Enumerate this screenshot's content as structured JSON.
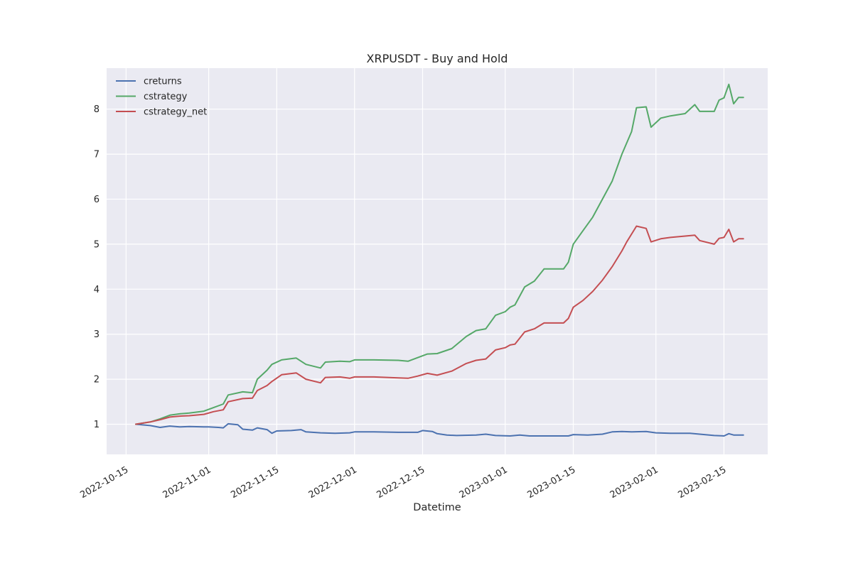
{
  "chart_data": {
    "type": "line",
    "title": "XRPUSDT - Buy and Hold",
    "xlabel": "Datetime",
    "ylabel": "",
    "x_type": "date",
    "xlim": [
      "2022-10-11",
      "2023-02-24"
    ],
    "ylim": [
      0.33,
      8.91
    ],
    "x_ticks": [
      "2022-10-15",
      "2022-11-01",
      "2022-11-15",
      "2022-12-01",
      "2022-12-15",
      "2023-01-01",
      "2023-01-15",
      "2023-02-01",
      "2023-02-15"
    ],
    "y_ticks": [
      1,
      2,
      3,
      4,
      5,
      6,
      7,
      8
    ],
    "grid": true,
    "legend_position": "top-left",
    "series": [
      {
        "name": "creturns",
        "color": "#4c72b0",
        "points": [
          [
            "2022-10-17",
            1.0
          ],
          [
            "2022-10-20",
            0.97
          ],
          [
            "2022-10-22",
            0.93
          ],
          [
            "2022-10-24",
            0.96
          ],
          [
            "2022-10-26",
            0.94
          ],
          [
            "2022-10-28",
            0.95
          ],
          [
            "2022-10-31",
            0.94
          ],
          [
            "2022-11-01",
            0.94
          ],
          [
            "2022-11-03",
            0.93
          ],
          [
            "2022-11-04",
            0.92
          ],
          [
            "2022-11-05",
            1.01
          ],
          [
            "2022-11-07",
            0.99
          ],
          [
            "2022-11-08",
            0.89
          ],
          [
            "2022-11-10",
            0.87
          ],
          [
            "2022-11-11",
            0.92
          ],
          [
            "2022-11-13",
            0.88
          ],
          [
            "2022-11-14",
            0.8
          ],
          [
            "2022-11-15",
            0.85
          ],
          [
            "2022-11-18",
            0.86
          ],
          [
            "2022-11-20",
            0.88
          ],
          [
            "2022-11-21",
            0.83
          ],
          [
            "2022-11-24",
            0.81
          ],
          [
            "2022-11-27",
            0.8
          ],
          [
            "2022-11-30",
            0.81
          ],
          [
            "2022-12-01",
            0.83
          ],
          [
            "2022-12-05",
            0.83
          ],
          [
            "2022-12-10",
            0.82
          ],
          [
            "2022-12-14",
            0.82
          ],
          [
            "2022-12-15",
            0.86
          ],
          [
            "2022-12-17",
            0.84
          ],
          [
            "2022-12-18",
            0.79
          ],
          [
            "2022-12-20",
            0.76
          ],
          [
            "2022-12-22",
            0.75
          ],
          [
            "2022-12-26",
            0.76
          ],
          [
            "2022-12-28",
            0.78
          ],
          [
            "2022-12-30",
            0.75
          ],
          [
            "2023-01-02",
            0.74
          ],
          [
            "2023-01-04",
            0.76
          ],
          [
            "2023-01-06",
            0.74
          ],
          [
            "2023-01-09",
            0.74
          ],
          [
            "2023-01-14",
            0.74
          ],
          [
            "2023-01-15",
            0.77
          ],
          [
            "2023-01-18",
            0.76
          ],
          [
            "2023-01-21",
            0.78
          ],
          [
            "2023-01-23",
            0.83
          ],
          [
            "2023-01-25",
            0.84
          ],
          [
            "2023-01-27",
            0.83
          ],
          [
            "2023-01-30",
            0.84
          ],
          [
            "2023-02-01",
            0.81
          ],
          [
            "2023-02-04",
            0.8
          ],
          [
            "2023-02-08",
            0.8
          ],
          [
            "2023-02-10",
            0.78
          ],
          [
            "2023-02-13",
            0.75
          ],
          [
            "2023-02-15",
            0.74
          ],
          [
            "2023-02-16",
            0.79
          ],
          [
            "2023-02-17",
            0.76
          ],
          [
            "2023-02-19",
            0.76
          ]
        ]
      },
      {
        "name": "cstrategy",
        "color": "#55a868",
        "points": [
          [
            "2022-10-17",
            1.0
          ],
          [
            "2022-10-20",
            1.05
          ],
          [
            "2022-10-22",
            1.12
          ],
          [
            "2022-10-24",
            1.2
          ],
          [
            "2022-10-26",
            1.23
          ],
          [
            "2022-10-28",
            1.25
          ],
          [
            "2022-10-31",
            1.29
          ],
          [
            "2022-11-02",
            1.37
          ],
          [
            "2022-11-04",
            1.45
          ],
          [
            "2022-11-05",
            1.65
          ],
          [
            "2022-11-08",
            1.72
          ],
          [
            "2022-11-10",
            1.7
          ],
          [
            "2022-11-11",
            2.0
          ],
          [
            "2022-11-13",
            2.2
          ],
          [
            "2022-11-14",
            2.33
          ],
          [
            "2022-11-16",
            2.43
          ],
          [
            "2022-11-19",
            2.47
          ],
          [
            "2022-11-21",
            2.33
          ],
          [
            "2022-11-24",
            2.25
          ],
          [
            "2022-11-25",
            2.38
          ],
          [
            "2022-11-28",
            2.4
          ],
          [
            "2022-11-30",
            2.39
          ],
          [
            "2022-12-01",
            2.43
          ],
          [
            "2022-12-05",
            2.43
          ],
          [
            "2022-12-10",
            2.42
          ],
          [
            "2022-12-12",
            2.4
          ],
          [
            "2022-12-14",
            2.48
          ],
          [
            "2022-12-16",
            2.56
          ],
          [
            "2022-12-18",
            2.57
          ],
          [
            "2022-12-21",
            2.68
          ],
          [
            "2022-12-24",
            2.95
          ],
          [
            "2022-12-26",
            3.08
          ],
          [
            "2022-12-28",
            3.12
          ],
          [
            "2022-12-30",
            3.42
          ],
          [
            "2023-01-01",
            3.5
          ],
          [
            "2023-01-02",
            3.6
          ],
          [
            "2023-01-03",
            3.65
          ],
          [
            "2023-01-05",
            4.05
          ],
          [
            "2023-01-07",
            4.18
          ],
          [
            "2023-01-09",
            4.45
          ],
          [
            "2023-01-13",
            4.45
          ],
          [
            "2023-01-14",
            4.6
          ],
          [
            "2023-01-15",
            5.0
          ],
          [
            "2023-01-17",
            5.3
          ],
          [
            "2023-01-19",
            5.6
          ],
          [
            "2023-01-21",
            6.0
          ],
          [
            "2023-01-23",
            6.4
          ],
          [
            "2023-01-25",
            7.0
          ],
          [
            "2023-01-27",
            7.5
          ],
          [
            "2023-01-28",
            8.03
          ],
          [
            "2023-01-30",
            8.05
          ],
          [
            "2023-01-31",
            7.6
          ],
          [
            "2023-02-02",
            7.8
          ],
          [
            "2023-02-04",
            7.85
          ],
          [
            "2023-02-07",
            7.9
          ],
          [
            "2023-02-09",
            8.1
          ],
          [
            "2023-02-10",
            7.95
          ],
          [
            "2023-02-13",
            7.95
          ],
          [
            "2023-02-14",
            8.2
          ],
          [
            "2023-02-15",
            8.25
          ],
          [
            "2023-02-16",
            8.55
          ],
          [
            "2023-02-17",
            8.12
          ],
          [
            "2023-02-18",
            8.26
          ],
          [
            "2023-02-19",
            8.26
          ]
        ]
      },
      {
        "name": "cstrategy_net",
        "color": "#c44e52",
        "points": [
          [
            "2022-10-17",
            1.0
          ],
          [
            "2022-10-20",
            1.05
          ],
          [
            "2022-10-22",
            1.1
          ],
          [
            "2022-10-24",
            1.16
          ],
          [
            "2022-10-26",
            1.18
          ],
          [
            "2022-10-28",
            1.19
          ],
          [
            "2022-10-31",
            1.22
          ],
          [
            "2022-11-02",
            1.28
          ],
          [
            "2022-11-04",
            1.32
          ],
          [
            "2022-11-05",
            1.5
          ],
          [
            "2022-11-08",
            1.57
          ],
          [
            "2022-11-10",
            1.58
          ],
          [
            "2022-11-11",
            1.75
          ],
          [
            "2022-11-13",
            1.86
          ],
          [
            "2022-11-14",
            1.95
          ],
          [
            "2022-11-16",
            2.1
          ],
          [
            "2022-11-19",
            2.14
          ],
          [
            "2022-11-21",
            2.0
          ],
          [
            "2022-11-24",
            1.92
          ],
          [
            "2022-11-25",
            2.04
          ],
          [
            "2022-11-28",
            2.05
          ],
          [
            "2022-11-30",
            2.02
          ],
          [
            "2022-12-01",
            2.05
          ],
          [
            "2022-12-05",
            2.05
          ],
          [
            "2022-12-10",
            2.03
          ],
          [
            "2022-12-12",
            2.02
          ],
          [
            "2022-12-14",
            2.07
          ],
          [
            "2022-12-16",
            2.13
          ],
          [
            "2022-12-18",
            2.09
          ],
          [
            "2022-12-21",
            2.18
          ],
          [
            "2022-12-24",
            2.35
          ],
          [
            "2022-12-26",
            2.42
          ],
          [
            "2022-12-28",
            2.45
          ],
          [
            "2022-12-30",
            2.65
          ],
          [
            "2023-01-01",
            2.7
          ],
          [
            "2023-01-02",
            2.76
          ],
          [
            "2023-01-03",
            2.78
          ],
          [
            "2023-01-05",
            3.05
          ],
          [
            "2023-01-07",
            3.12
          ],
          [
            "2023-01-09",
            3.25
          ],
          [
            "2023-01-13",
            3.25
          ],
          [
            "2023-01-14",
            3.35
          ],
          [
            "2023-01-15",
            3.6
          ],
          [
            "2023-01-17",
            3.75
          ],
          [
            "2023-01-19",
            3.95
          ],
          [
            "2023-01-21",
            4.2
          ],
          [
            "2023-01-23",
            4.5
          ],
          [
            "2023-01-25",
            4.85
          ],
          [
            "2023-01-26",
            5.05
          ],
          [
            "2023-01-28",
            5.4
          ],
          [
            "2023-01-30",
            5.35
          ],
          [
            "2023-01-31",
            5.05
          ],
          [
            "2023-02-02",
            5.12
          ],
          [
            "2023-02-04",
            5.15
          ],
          [
            "2023-02-07",
            5.18
          ],
          [
            "2023-02-09",
            5.2
          ],
          [
            "2023-02-10",
            5.08
          ],
          [
            "2023-02-13",
            5.0
          ],
          [
            "2023-02-14",
            5.13
          ],
          [
            "2023-02-15",
            5.15
          ],
          [
            "2023-02-16",
            5.33
          ],
          [
            "2023-02-17",
            5.05
          ],
          [
            "2023-02-18",
            5.12
          ],
          [
            "2023-02-19",
            5.12
          ]
        ]
      }
    ]
  }
}
